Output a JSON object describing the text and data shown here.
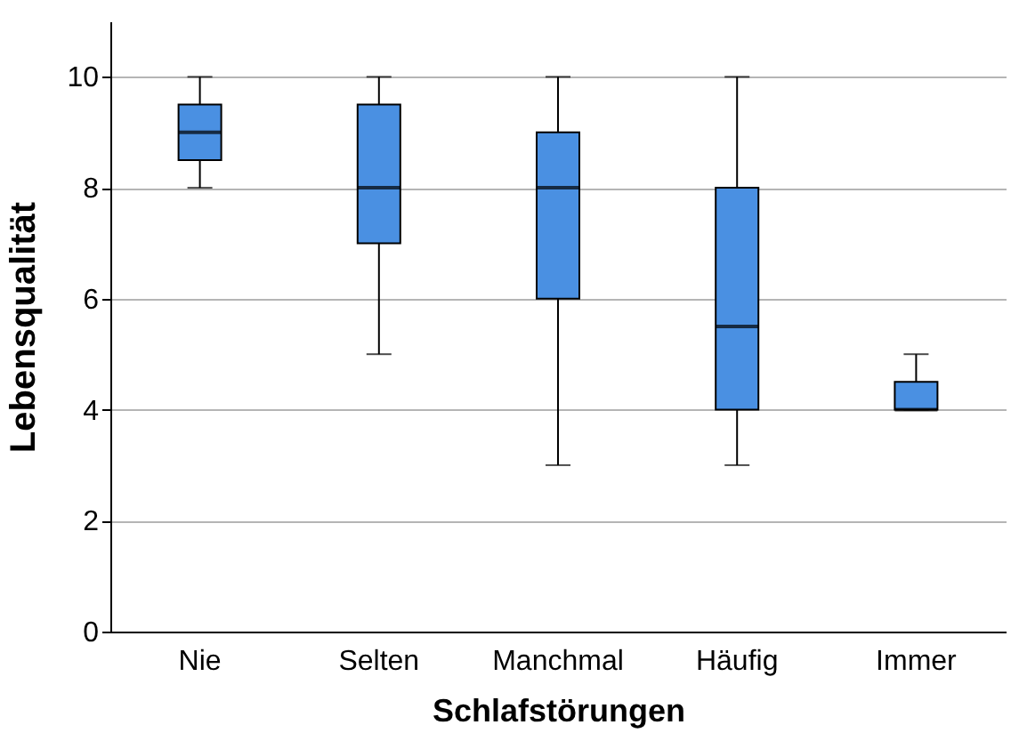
{
  "chart_data": {
    "type": "box",
    "xlabel": "Schlafstörungen",
    "ylabel": "Lebensqualität",
    "categories": [
      "Nie",
      "Selten",
      "Manchmal",
      "Häufig",
      "Immer"
    ],
    "color": "#4a90e2",
    "boxes": [
      {
        "low": 8,
        "q1": 8.5,
        "median": 9,
        "q3": 9.5,
        "high": 10
      },
      {
        "low": 5,
        "q1": 7,
        "median": 8,
        "q3": 9.5,
        "high": 10
      },
      {
        "low": 3,
        "q1": 6,
        "median": 8,
        "q3": 9,
        "high": 10
      },
      {
        "low": 3,
        "q1": 4,
        "median": 5.5,
        "q3": 8,
        "high": 10
      },
      {
        "low": 4,
        "q1": 4,
        "median": 4,
        "q3": 4.5,
        "high": 5
      }
    ],
    "ylim": [
      0,
      11
    ],
    "yticks": [
      0,
      2,
      4,
      6,
      8,
      10
    ],
    "grid": "y"
  }
}
